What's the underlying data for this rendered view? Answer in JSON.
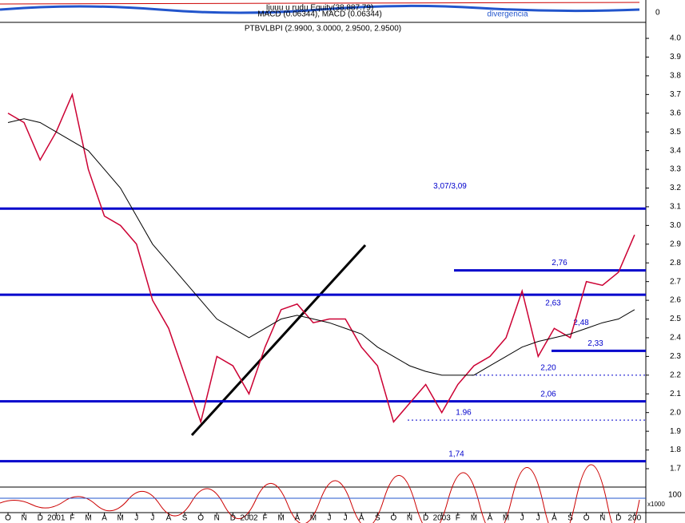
{
  "chart_data": {
    "type": "line",
    "title": "PTBVLBPI (2.9900, 3.0000, 2.9500, 2.9500)",
    "top_panel_labels": [
      "Ijuuu u rudu Equity(38,887.79)",
      "MACD (0.06344), MACD (0.06344)",
      "divergencia"
    ],
    "top_panel_tick": 0,
    "bottom_panel_labels": [
      "x1000",
      "100"
    ],
    "categories": [
      "O",
      "N",
      "D",
      "2001",
      "F",
      "M",
      "A",
      "M",
      "J",
      "J",
      "A",
      "S",
      "O",
      "N",
      "D",
      "2002",
      "F",
      "M",
      "A",
      "M",
      "J",
      "J",
      "A",
      "S",
      "O",
      "N",
      "D",
      "2003",
      "F",
      "M",
      "A",
      "M",
      "J",
      "J",
      "A",
      "S",
      "O",
      "N",
      "D",
      "200"
    ],
    "series": [
      {
        "name": "PTBVLBPI",
        "color": "#cc0033",
        "values": [
          3.6,
          3.55,
          3.35,
          3.5,
          3.7,
          3.3,
          3.05,
          3.0,
          2.9,
          2.6,
          2.45,
          2.2,
          1.95,
          2.3,
          2.25,
          2.1,
          2.35,
          2.55,
          2.58,
          2.48,
          2.5,
          2.5,
          2.35,
          2.25,
          1.95,
          2.05,
          2.15,
          2.0,
          2.15,
          2.25,
          2.3,
          2.4,
          2.65,
          2.3,
          2.45,
          2.4,
          2.7,
          2.68,
          2.75,
          2.95
        ]
      },
      {
        "name": "MA",
        "color": "#000000",
        "values": [
          3.55,
          3.57,
          3.55,
          3.5,
          3.45,
          3.4,
          3.3,
          3.2,
          3.05,
          2.9,
          2.8,
          2.7,
          2.6,
          2.5,
          2.45,
          2.4,
          2.45,
          2.5,
          2.52,
          2.5,
          2.48,
          2.45,
          2.42,
          2.35,
          2.3,
          2.25,
          2.22,
          2.2,
          2.2,
          2.2,
          2.25,
          2.3,
          2.35,
          2.38,
          2.4,
          2.42,
          2.45,
          2.48,
          2.5,
          2.55
        ]
      }
    ],
    "levels": [
      {
        "value": 3.09,
        "label": "3,07/3,09",
        "style": "solid"
      },
      {
        "value": 2.76,
        "label": "2,76",
        "style": "solid"
      },
      {
        "value": 2.63,
        "label": "2,63",
        "style": "solid"
      },
      {
        "value": 2.48,
        "label": "2,48",
        "style": "none"
      },
      {
        "value": 2.33,
        "label": "2,33",
        "style": "solid"
      },
      {
        "value": 2.2,
        "label": "2,20",
        "style": "dotted"
      },
      {
        "value": 2.06,
        "label": "2,06",
        "style": "solid"
      },
      {
        "value": 1.96,
        "label": "1.96",
        "style": "dotted"
      },
      {
        "value": 1.74,
        "label": "1,74",
        "style": "solid"
      }
    ],
    "level_color": "#0000cc",
    "ylim": [
      1.653,
      4.077
    ],
    "yticks": [
      1.7,
      1.8,
      1.9,
      {
        "value": 2.0,
        "label": "2.0"
      },
      2.1,
      2.2,
      2.3,
      2.4,
      2.5,
      2.6,
      2.7,
      2.8,
      2.9,
      {
        "value": 3.0,
        "label": "3.0"
      },
      3.1,
      3.2,
      3.3,
      3.4,
      3.5,
      3.6,
      3.7,
      3.8,
      3.9,
      {
        "value": 4.0,
        "label": "4.0"
      }
    ]
  }
}
